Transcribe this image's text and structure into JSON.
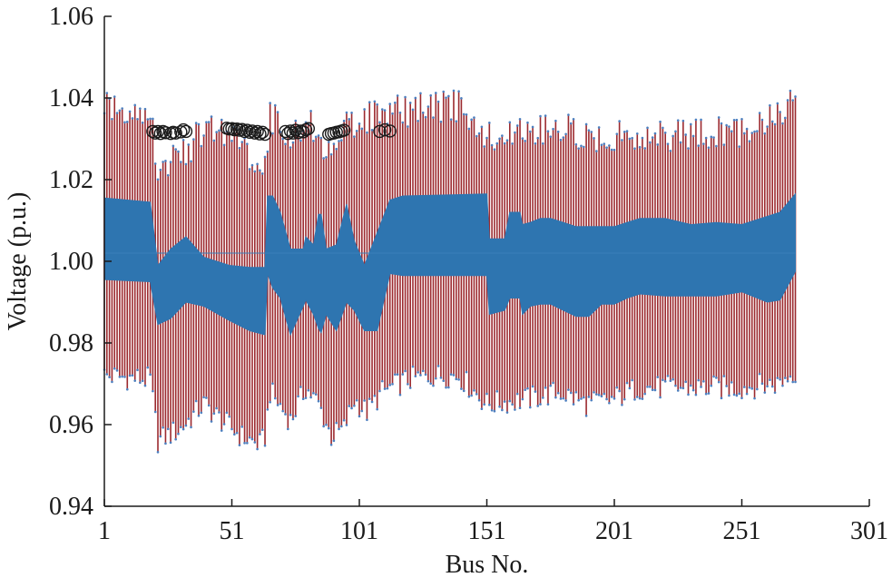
{
  "chart_data": {
    "type": "bar",
    "title": "",
    "xlabel": "Bus No.",
    "ylabel": "Voltage (p.u.)",
    "xlim": [
      1,
      301
    ],
    "ylim": [
      0.94,
      1.06
    ],
    "x_ticks": [
      1,
      51,
      101,
      151,
      201,
      251,
      301
    ],
    "y_ticks": [
      0.94,
      0.96,
      0.98,
      1.0,
      1.02,
      1.04,
      1.06
    ],
    "x_tick_labels": [
      "1",
      "51",
      "101",
      "151",
      "201",
      "251",
      "301"
    ],
    "y_tick_labels": [
      "0.94",
      "0.96",
      "0.98",
      "1.00",
      "1.02",
      "1.04",
      "1.06"
    ],
    "grid": false,
    "bus_count": 272,
    "series": [
      {
        "role": "voltage-range-bars",
        "color": "#9c2a2f",
        "marker_color": "#4c7fbf",
        "profile_lower": {
          "x": [
            1,
            19,
            22,
            31,
            40,
            47,
            55,
            62,
            64,
            66,
            74,
            80,
            85,
            90,
            95,
            99,
            104,
            110,
            120,
            130,
            140,
            151,
            165,
            180,
            190,
            200,
            210,
            230,
            250,
            265,
            272
          ],
          "y": [
            0.969,
            0.968,
            0.953,
            0.956,
            0.962,
            0.958,
            0.954,
            0.952,
            0.954,
            0.965,
            0.958,
            0.966,
            0.962,
            0.954,
            0.956,
            0.963,
            0.96,
            0.965,
            0.968,
            0.969,
            0.969,
            0.962,
            0.963,
            0.965,
            0.962,
            0.963,
            0.966,
            0.966,
            0.966,
            0.967,
            0.97
          ]
        },
        "profile_upper": {
          "x": [
            1,
            10,
            19,
            22,
            30,
            40,
            50,
            60,
            64,
            66,
            74,
            80,
            85,
            90,
            95,
            100,
            110,
            120,
            130,
            140,
            151,
            165,
            180,
            190,
            200,
            210,
            230,
            250,
            265,
            272
          ],
          "y": [
            1.043,
            1.041,
            1.041,
            1.027,
            1.029,
            1.036,
            1.036,
            1.029,
            1.027,
            1.04,
            1.034,
            1.038,
            1.036,
            1.029,
            1.036,
            1.039,
            1.04,
            1.041,
            1.042,
            1.042,
            1.034,
            1.036,
            1.037,
            1.034,
            1.035,
            1.035,
            1.035,
            1.036,
            1.04,
            1.043
          ]
        }
      },
      {
        "role": "voltage-band",
        "color": "#2e75b0",
        "upper": {
          "x": [
            1,
            19,
            22,
            27,
            33,
            40,
            50,
            58,
            64,
            65,
            67,
            70,
            74,
            79,
            80,
            83,
            85,
            86,
            88,
            92,
            96,
            99,
            103,
            113,
            118,
            151,
            152,
            158,
            160,
            164,
            165,
            168,
            172,
            176,
            181,
            186,
            191,
            196,
            201,
            206,
            211,
            221,
            231,
            241,
            251,
            261,
            266,
            272
          ],
          "y": [
            1.0155,
            1.0145,
            0.999,
            1.003,
            1.006,
            1.001,
            0.999,
            0.9985,
            0.9985,
            1.016,
            1.016,
            1.012,
            1.003,
            1.003,
            1.006,
            1.004,
            1.0115,
            1.0115,
            1.003,
            1.004,
            1.014,
            1.005,
            0.999,
            1.015,
            1.016,
            1.0165,
            1.0055,
            1.0055,
            1.012,
            1.012,
            1.009,
            1.0095,
            1.0105,
            1.0105,
            1.0095,
            1.0085,
            1.0085,
            1.0085,
            1.0085,
            1.0095,
            1.0105,
            1.0105,
            1.009,
            1.0095,
            1.009,
            1.011,
            1.012,
            1.0165
          ]
        },
        "lower": {
          "x": [
            1,
            19,
            22,
            27,
            33,
            40,
            50,
            58,
            64,
            65,
            67,
            70,
            74,
            79,
            80,
            83,
            85,
            86,
            88,
            92,
            96,
            99,
            103,
            108,
            113,
            118,
            151,
            152,
            158,
            160,
            164,
            165,
            168,
            172,
            176,
            181,
            186,
            191,
            196,
            201,
            206,
            211,
            221,
            231,
            241,
            251,
            261,
            266,
            272
          ],
          "y": [
            0.9955,
            0.995,
            0.9845,
            0.986,
            0.99,
            0.989,
            0.9855,
            0.983,
            0.982,
            0.997,
            0.9935,
            0.991,
            0.982,
            0.989,
            0.9905,
            0.987,
            0.9835,
            0.9825,
            0.987,
            0.983,
            0.99,
            0.988,
            0.983,
            0.983,
            0.997,
            0.9965,
            0.9965,
            0.987,
            0.988,
            0.991,
            0.991,
            0.987,
            0.989,
            0.9895,
            0.9895,
            0.988,
            0.9865,
            0.9865,
            0.9895,
            0.9895,
            0.991,
            0.992,
            0.9915,
            0.9915,
            0.9915,
            0.9925,
            0.99,
            0.9905,
            0.9975
          ]
        },
        "center": 1.002
      },
      {
        "role": "highlighted-buses",
        "color": "#1a1a1a",
        "marker": "circle",
        "points": [
          {
            "x": 20,
            "y": 1.0318
          },
          {
            "x": 21,
            "y": 1.0314
          },
          {
            "x": 22,
            "y": 1.0318
          },
          {
            "x": 23,
            "y": 1.0313
          },
          {
            "x": 24,
            "y": 1.0318
          },
          {
            "x": 25,
            "y": 1.0315
          },
          {
            "x": 27,
            "y": 1.0313
          },
          {
            "x": 28,
            "y": 1.0316
          },
          {
            "x": 29,
            "y": 1.0314
          },
          {
            "x": 31,
            "y": 1.0317
          },
          {
            "x": 32,
            "y": 1.0322
          },
          {
            "x": 33,
            "y": 1.0318
          },
          {
            "x": 49,
            "y": 1.0326
          },
          {
            "x": 50,
            "y": 1.0324
          },
          {
            "x": 51,
            "y": 1.0325
          },
          {
            "x": 52,
            "y": 1.0322
          },
          {
            "x": 53,
            "y": 1.0324
          },
          {
            "x": 54,
            "y": 1.0321
          },
          {
            "x": 55,
            "y": 1.0323
          },
          {
            "x": 56,
            "y": 1.0318
          },
          {
            "x": 57,
            "y": 1.0321
          },
          {
            "x": 58,
            "y": 1.0316
          },
          {
            "x": 59,
            "y": 1.0319
          },
          {
            "x": 60,
            "y": 1.0314
          },
          {
            "x": 61,
            "y": 1.0318
          },
          {
            "x": 62,
            "y": 1.0312
          },
          {
            "x": 63,
            "y": 1.0316
          },
          {
            "x": 64,
            "y": 1.0311
          },
          {
            "x": 72,
            "y": 1.0318
          },
          {
            "x": 73,
            "y": 1.0313
          },
          {
            "x": 74,
            "y": 1.0319
          },
          {
            "x": 75,
            "y": 1.0314
          },
          {
            "x": 76,
            "y": 1.0321
          },
          {
            "x": 77,
            "y": 1.0315
          },
          {
            "x": 78,
            "y": 1.0319
          },
          {
            "x": 79,
            "y": 1.0317
          },
          {
            "x": 80,
            "y": 1.0322
          },
          {
            "x": 81,
            "y": 1.0325
          },
          {
            "x": 89,
            "y": 1.0311
          },
          {
            "x": 90,
            "y": 1.0313
          },
          {
            "x": 91,
            "y": 1.0314
          },
          {
            "x": 92,
            "y": 1.0316
          },
          {
            "x": 93,
            "y": 1.0317
          },
          {
            "x": 94,
            "y": 1.0319
          },
          {
            "x": 95,
            "y": 1.0321
          },
          {
            "x": 109,
            "y": 1.0318
          },
          {
            "x": 111,
            "y": 1.0322
          },
          {
            "x": 113,
            "y": 1.0319
          }
        ]
      }
    ]
  }
}
